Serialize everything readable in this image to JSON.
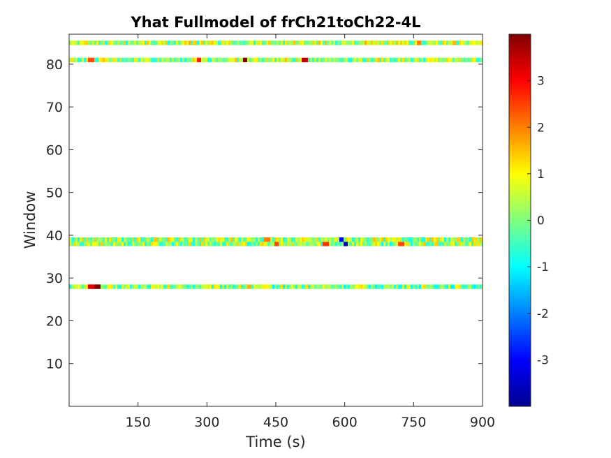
{
  "chart_data": {
    "type": "heatmap",
    "title": "Yhat Fullmodel of frCh21toCh22-4L",
    "xlabel": "Time (s)",
    "ylabel": "Window",
    "xlim": [
      0,
      900
    ],
    "ylim": [
      0,
      87
    ],
    "x_ticks": [
      150,
      300,
      450,
      600,
      750,
      900
    ],
    "y_ticks": [
      10,
      20,
      30,
      40,
      50,
      60,
      70,
      80
    ],
    "colormap": "jet",
    "clim": [
      -4,
      4
    ],
    "colorbar_ticks": [
      3,
      2,
      1,
      0,
      -1,
      -2,
      -3
    ],
    "grid": false,
    "rows": [
      {
        "window": 28,
        "level": 0.1,
        "hot_spots": [
          [
            45,
            3.2
          ],
          [
            60,
            4.0
          ],
          [
            390,
            1.6
          ]
        ]
      },
      {
        "window": 38,
        "level": 0.2,
        "hot_spots": [
          [
            450,
            2.5
          ],
          [
            555,
            2.6
          ],
          [
            600,
            -3.5
          ],
          [
            720,
            2.4
          ]
        ]
      },
      {
        "window": 39,
        "level": 0.3,
        "hot_spots": [
          [
            430,
            2.0
          ],
          [
            590,
            -3.0
          ]
        ]
      },
      {
        "window": 81,
        "level": 0.3,
        "hot_spots": [
          [
            45,
            2.4
          ],
          [
            280,
            2.8
          ],
          [
            380,
            4.0
          ],
          [
            510,
            3.5
          ]
        ]
      },
      {
        "window": 85,
        "level": 0.4,
        "hot_spots": [
          [
            760,
            2.0
          ]
        ]
      }
    ]
  }
}
